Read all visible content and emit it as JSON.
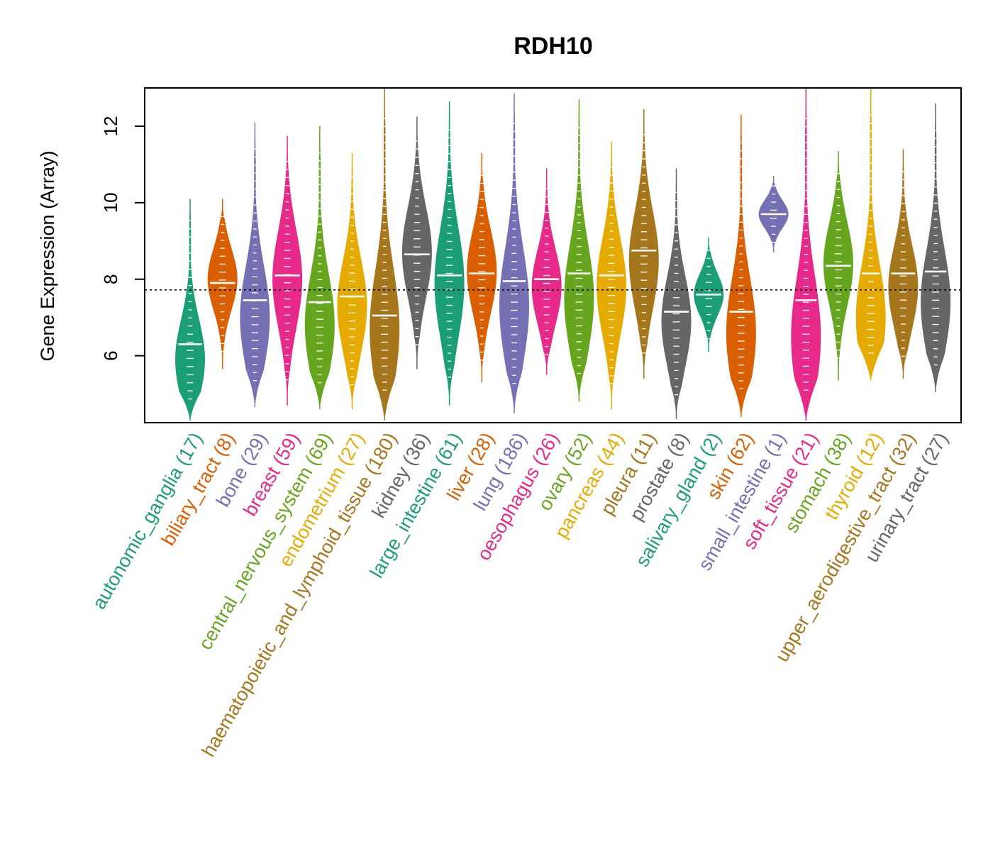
{
  "chart_data": {
    "type": "violin",
    "title": "RDH10",
    "ylabel": "Gene Expression (Array)",
    "xlabel": "",
    "ylim": [
      4.25,
      13.0
    ],
    "yticks": [
      6,
      8,
      10,
      12
    ],
    "reference_line": 7.72,
    "grid": false,
    "colors": {
      "teal": "#1B9E77",
      "orange": "#D95F02",
      "purple": "#7570B3",
      "pink": "#E7298A",
      "green": "#66A61E",
      "gold": "#E6AB02",
      "brown": "#A6761D",
      "gray": "#666666"
    },
    "categories": [
      {
        "name": "autonomic_ganglia",
        "count": "(17)",
        "color": "#1B9E77",
        "min": 4.3,
        "max": 10.1,
        "median": 6.3,
        "mode": 5.9
      },
      {
        "name": "biliary_tract",
        "count": "(8)",
        "color": "#D95F02",
        "min": 5.65,
        "max": 10.1,
        "median": 7.9,
        "mode": 8.0
      },
      {
        "name": "bone",
        "count": "(29)",
        "color": "#7570B3",
        "min": 4.65,
        "max": 12.1,
        "median": 7.45,
        "mode": 7.0
      },
      {
        "name": "breast",
        "count": "(59)",
        "color": "#E7298A",
        "min": 4.7,
        "max": 11.75,
        "median": 8.1,
        "mode": 8.0
      },
      {
        "name": "central_nervous_system",
        "count": "(69)",
        "color": "#66A61E",
        "min": 4.6,
        "max": 12.0,
        "median": 7.4,
        "mode": 6.8
      },
      {
        "name": "endometrium",
        "count": "(27)",
        "color": "#E6AB02",
        "min": 4.6,
        "max": 11.3,
        "median": 7.55,
        "mode": 7.3
      },
      {
        "name": "haematopoietic_and_lymphoid_tissue",
        "count": "(180)",
        "color": "#A6761D",
        "min": 4.3,
        "max": 13.0,
        "median": 7.05,
        "mode": 6.7
      },
      {
        "name": "kidney",
        "count": "(36)",
        "color": "#666666",
        "min": 5.65,
        "max": 12.25,
        "median": 8.65,
        "mode": 8.7
      },
      {
        "name": "large_intestine",
        "count": "(61)",
        "color": "#1B9E77",
        "min": 4.7,
        "max": 12.65,
        "median": 8.1,
        "mode": 7.9
      },
      {
        "name": "liver",
        "count": "(28)",
        "color": "#D95F02",
        "min": 5.3,
        "max": 11.3,
        "median": 8.15,
        "mode": 8.2
      },
      {
        "name": "lung",
        "count": "(186)",
        "color": "#7570B3",
        "min": 4.5,
        "max": 12.85,
        "median": 7.95,
        "mode": 7.3
      },
      {
        "name": "oesophagus",
        "count": "(26)",
        "color": "#E7298A",
        "min": 5.5,
        "max": 10.9,
        "median": 8.0,
        "mode": 7.8
      },
      {
        "name": "ovary",
        "count": "(52)",
        "color": "#66A61E",
        "min": 4.8,
        "max": 12.7,
        "median": 8.15,
        "mode": 7.5
      },
      {
        "name": "pancreas",
        "count": "(44)",
        "color": "#E6AB02",
        "min": 4.6,
        "max": 11.6,
        "median": 8.1,
        "mode": 7.8
      },
      {
        "name": "pleura",
        "count": "(11)",
        "color": "#A6761D",
        "min": 5.4,
        "max": 12.45,
        "median": 8.75,
        "mode": 8.5
      },
      {
        "name": "prostate",
        "count": "(8)",
        "color": "#666666",
        "min": 4.35,
        "max": 10.9,
        "median": 7.15,
        "mode": 6.9
      },
      {
        "name": "salivary_gland",
        "count": "(2)",
        "color": "#1B9E77",
        "min": 6.1,
        "max": 9.1,
        "median": 7.6,
        "mode": 7.6
      },
      {
        "name": "skin",
        "count": "(62)",
        "color": "#D95F02",
        "min": 4.4,
        "max": 12.3,
        "median": 7.15,
        "mode": 6.6
      },
      {
        "name": "small_intestine",
        "count": "(1)",
        "color": "#7570B3",
        "min": 8.7,
        "max": 10.7,
        "median": 9.7,
        "mode": 9.7
      },
      {
        "name": "soft_tissue",
        "count": "(21)",
        "color": "#E7298A",
        "min": 4.3,
        "max": 13.0,
        "median": 7.45,
        "mode": 6.5
      },
      {
        "name": "stomach",
        "count": "(38)",
        "color": "#66A61E",
        "min": 5.35,
        "max": 11.35,
        "median": 8.35,
        "mode": 8.4
      },
      {
        "name": "thyroid",
        "count": "(12)",
        "color": "#E6AB02",
        "min": 5.35,
        "max": 13.0,
        "median": 8.15,
        "mode": 7.0
      },
      {
        "name": "upper_aerodigestive_tract",
        "count": "(32)",
        "color": "#A6761D",
        "min": 5.4,
        "max": 11.4,
        "median": 8.15,
        "mode": 7.8
      },
      {
        "name": "urinary_tract",
        "count": "(27)",
        "color": "#666666",
        "min": 5.05,
        "max": 12.6,
        "median": 8.2,
        "mode": 7.4
      }
    ]
  }
}
